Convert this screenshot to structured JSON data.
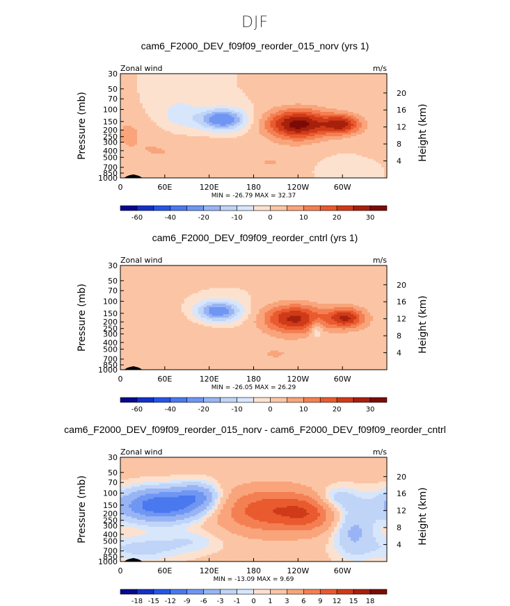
{
  "suptitle": "DJF",
  "chart_data": [
    {
      "type": "heatmap",
      "title": "cam6_F2000_DEV_f09f09_reorder_015_norv (yrs 1)",
      "variable": "Zonal wind",
      "units": "m/s",
      "ylabel": "Pressure (mb)",
      "ylabel2": "Height (km)",
      "xticks": [
        "0",
        "60E",
        "120E",
        "180",
        "120W",
        "60W"
      ],
      "yticks": [
        "30",
        "50",
        "70",
        "100",
        "150",
        "200",
        "250",
        "300",
        "400",
        "500",
        "700",
        "850",
        "1000"
      ],
      "height_ticks": [
        "20",
        "16",
        "12",
        "8",
        "4"
      ],
      "stats": "MIN = -26.79   MAX =  32.37",
      "min": -26.79,
      "max": 32.37,
      "colorbar_ticks": [
        "-60",
        "-40",
        "-20",
        "-10",
        "0",
        "10",
        "20",
        "30"
      ],
      "colorbar_colors": [
        "#08088e",
        "#1230c8",
        "#2555e8",
        "#4a78ee",
        "#6f96f2",
        "#98b4f5",
        "#c0d4f8",
        "#d7e6fb",
        "#fde1cf",
        "#fbc5a5",
        "#f9a47b",
        "#f47f52",
        "#e95a2e",
        "#cf3a18",
        "#a7200c",
        "#7c0b05"
      ],
      "features": [
        {
          "lon": 138,
          "p": 140,
          "rx": 22,
          "ry": 40,
          "amp": -26.8
        },
        {
          "lon": 240,
          "p": 165,
          "rx": 30,
          "ry": 70,
          "amp": 32.4
        },
        {
          "lon": 300,
          "p": 165,
          "rx": 18,
          "ry": 45,
          "amp": 24.0
        },
        {
          "lon": 30,
          "p": 330,
          "rx": 35,
          "ry": 250,
          "amp": 4.0
        },
        {
          "lon": 100,
          "p": 500,
          "rx": 45,
          "ry": 300,
          "amp": 4.0
        },
        {
          "lon": 210,
          "p": 600,
          "rx": 40,
          "ry": 250,
          "amp": 5.0
        },
        {
          "lon": 10,
          "p": 220,
          "rx": 8,
          "ry": 60,
          "amp": 6.0
        },
        {
          "lon": 80,
          "p": 120,
          "rx": 20,
          "ry": 60,
          "amp": -8.0
        },
        {
          "lon": 300,
          "p": 700,
          "rx": 40,
          "ry": 200,
          "amp": -3.0
        }
      ]
    },
    {
      "type": "heatmap",
      "title": "cam6_F2000_DEV_f09f09_reorder_cntrl (yrs 1)",
      "variable": "Zonal wind",
      "units": "m/s",
      "ylabel": "Pressure (mb)",
      "ylabel2": "Height (km)",
      "xticks": [
        "0",
        "60E",
        "120E",
        "180",
        "120W",
        "60W"
      ],
      "yticks": [
        "30",
        "50",
        "70",
        "100",
        "150",
        "200",
        "250",
        "300",
        "400",
        "500",
        "700",
        "850",
        "1000"
      ],
      "height_ticks": [
        "20",
        "16",
        "12",
        "8",
        "4"
      ],
      "stats": "MIN = -26.05   MAX =  26.29",
      "min": -26.05,
      "max": 26.29,
      "colorbar_ticks": [
        "-60",
        "-40",
        "-20",
        "-10",
        "0",
        "10",
        "20",
        "30"
      ],
      "colorbar_colors": [
        "#08088e",
        "#1230c8",
        "#2555e8",
        "#4a78ee",
        "#6f96f2",
        "#98b4f5",
        "#c0d4f8",
        "#d7e6fb",
        "#fde1cf",
        "#fbc5a5",
        "#f9a47b",
        "#f47f52",
        "#e95a2e",
        "#cf3a18",
        "#a7200c",
        "#7c0b05"
      ],
      "features": [
        {
          "lon": 132,
          "p": 140,
          "rx": 22,
          "ry": 40,
          "amp": -26.0
        },
        {
          "lon": 235,
          "p": 180,
          "rx": 30,
          "ry": 75,
          "amp": 26.3
        },
        {
          "lon": 305,
          "p": 175,
          "rx": 18,
          "ry": 50,
          "amp": 24.0
        },
        {
          "lon": 60,
          "p": 300,
          "rx": 60,
          "ry": 300,
          "amp": 4.5
        },
        {
          "lon": 210,
          "p": 600,
          "rx": 40,
          "ry": 250,
          "amp": 5.0
        },
        {
          "lon": 15,
          "p": 300,
          "rx": 10,
          "ry": 100,
          "amp": -3.0
        },
        {
          "lon": 265,
          "p": 250,
          "rx": 6,
          "ry": 60,
          "amp": -10.0
        }
      ]
    },
    {
      "type": "heatmap",
      "title": "cam6_F2000_DEV_f09f09_reorder_015_norv - cam6_F2000_DEV_f09f09_reorder_cntrl",
      "variable": "Zonal wind",
      "units": "m/s",
      "ylabel": "Pressure (mb)",
      "ylabel2": "Height (km)",
      "xticks": [
        "0",
        "60E",
        "120E",
        "180",
        "120W",
        "60W"
      ],
      "yticks": [
        "30",
        "50",
        "70",
        "100",
        "150",
        "200",
        "250",
        "300",
        "400",
        "500",
        "700",
        "850",
        "1000"
      ],
      "height_ticks": [
        "20",
        "16",
        "12",
        "8",
        "4"
      ],
      "stats": "MIN = -13.09   MAX =   9.69",
      "min": -13.09,
      "max": 9.69,
      "colorbar_ticks": [
        "-18",
        "-15",
        "-12",
        "-9",
        "-6",
        "-3",
        "-1",
        "0",
        "1",
        "3",
        "6",
        "9",
        "12",
        "15",
        "18"
      ],
      "colorbar_colors": [
        "#08088e",
        "#1230c8",
        "#2555e8",
        "#4a78ee",
        "#6f96f2",
        "#98b4f5",
        "#c0d4f8",
        "#d7e6fb",
        "#fde1cf",
        "#fbc5a5",
        "#f9a47b",
        "#f47f52",
        "#e95a2e",
        "#cf3a18",
        "#a7200c",
        "#7c0b05"
      ],
      "background": 1.5,
      "features": [
        {
          "lon": 55,
          "p": 150,
          "rx": 40,
          "ry": 70,
          "amp": -13.1
        },
        {
          "lon": 105,
          "p": 110,
          "rx": 20,
          "ry": 40,
          "amp": -6.0
        },
        {
          "lon": 200,
          "p": 180,
          "rx": 45,
          "ry": 120,
          "amp": 9.7
        },
        {
          "lon": 255,
          "p": 200,
          "rx": 25,
          "ry": 100,
          "amp": 6.0
        },
        {
          "lon": 315,
          "p": 350,
          "rx": 20,
          "ry": 300,
          "amp": -5.0
        },
        {
          "lon": 30,
          "p": 650,
          "rx": 40,
          "ry": 250,
          "amp": -3.0
        },
        {
          "lon": 100,
          "p": 500,
          "rx": 30,
          "ry": 150,
          "amp": -2.0
        },
        {
          "lon": 290,
          "p": 120,
          "rx": 20,
          "ry": 40,
          "amp": -4.0
        }
      ]
    }
  ]
}
